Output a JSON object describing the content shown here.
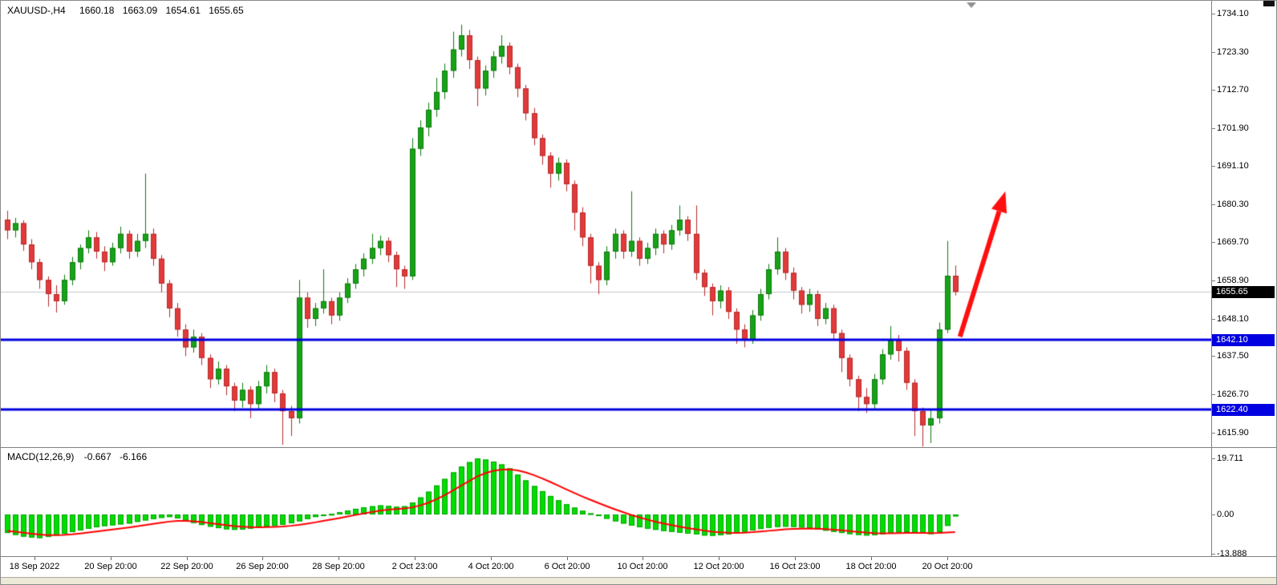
{
  "header": {
    "symbol_timeframe": "XAUUSD-,H4",
    "open": "1660.18",
    "high": "1663.09",
    "low": "1654.61",
    "close": "1655.65"
  },
  "price_axis": {
    "ticks": [
      "1734.10",
      "1723.30",
      "1712.70",
      "1701.90",
      "1691.10",
      "1680.30",
      "1669.70",
      "1658.90",
      "1648.10",
      "1637.50",
      "1626.70",
      "1615.90"
    ],
    "current_badge": {
      "label": "1655.65",
      "price": 1655.65
    },
    "line_badges": [
      {
        "label": "1642.10",
        "price": 1642.1
      },
      {
        "label": "1622.40",
        "price": 1622.4
      }
    ]
  },
  "time_axis": {
    "labels": [
      "18 Sep 2022",
      "20 Sep 20:00",
      "22 Sep 20:00",
      "26 Sep 20:00",
      "28 Sep 20:00",
      "2 Oct 23:00",
      "4 Oct 20:00",
      "6 Oct 20:00",
      "10 Oct 20:00",
      "12 Oct 20:00",
      "16 Oct 23:00",
      "18 Oct 20:00",
      "20 Oct 20:00"
    ]
  },
  "macd_panel": {
    "name": "MACD(12,26,9)",
    "main_value": "-0.667",
    "signal_value": "-6.166",
    "scale_ticks": [
      "19.711",
      "0.00",
      "-13.888"
    ]
  },
  "colors": {
    "bull": "#17a317",
    "bull_border": "#0e7a0e",
    "bear": "#e23a3a",
    "bear_border": "#b52b2b",
    "histogram": "#00dd00",
    "histogram_border": "#00a300",
    "signal_line": "#ff0000",
    "level_line": "#0000e0",
    "current_price_line": "#c8c8c8",
    "current_badge_bg": "#000000",
    "level_badge_bg": "#0000e0",
    "arrow": "#ff0f0f"
  },
  "chart_data": {
    "type": "candlestick",
    "symbol": "XAUUSD",
    "timeframe": "H4",
    "y_range": [
      1615.9,
      1734.1
    ],
    "current_price": 1655.65,
    "levels": [
      1642.1,
      1622.4
    ],
    "ohlc": [
      [
        1676.0,
        1678.5,
        1670.5,
        1673.0
      ],
      [
        1673.0,
        1676.5,
        1671.0,
        1675.0
      ],
      [
        1675.0,
        1675.8,
        1667.2,
        1669.0
      ],
      [
        1669.0,
        1670.5,
        1662.0,
        1664.0
      ],
      [
        1664.0,
        1665.0,
        1656.5,
        1659.0
      ],
      [
        1659.0,
        1660.0,
        1651.5,
        1655.0
      ],
      [
        1655.0,
        1657.5,
        1649.8,
        1653.0
      ],
      [
        1653.0,
        1660.5,
        1652.0,
        1659.0
      ],
      [
        1659.0,
        1665.5,
        1657.5,
        1664.0
      ],
      [
        1664.0,
        1669.0,
        1662.0,
        1668.0
      ],
      [
        1668.0,
        1673.0,
        1666.5,
        1671.0
      ],
      [
        1671.0,
        1672.5,
        1665.0,
        1667.0
      ],
      [
        1667.0,
        1668.5,
        1661.5,
        1664.0
      ],
      [
        1664.0,
        1669.5,
        1663.0,
        1668.0
      ],
      [
        1668.0,
        1674.0,
        1666.5,
        1672.0
      ],
      [
        1672.0,
        1673.0,
        1665.0,
        1667.0
      ],
      [
        1667.0,
        1672.0,
        1665.5,
        1670.0
      ],
      [
        1670.0,
        1689.0,
        1668.0,
        1672.0
      ],
      [
        1672.0,
        1673.5,
        1663.0,
        1665.0
      ],
      [
        1665.0,
        1666.0,
        1655.5,
        1658.0
      ],
      [
        1658.0,
        1659.0,
        1648.5,
        1651.0
      ],
      [
        1651.0,
        1652.5,
        1643.0,
        1645.0
      ],
      [
        1645.0,
        1646.5,
        1637.5,
        1640.0
      ],
      [
        1640.0,
        1645.0,
        1638.5,
        1643.0
      ],
      [
        1643.0,
        1644.0,
        1635.0,
        1637.0
      ],
      [
        1637.0,
        1638.0,
        1628.5,
        1631.0
      ],
      [
        1631.0,
        1636.0,
        1629.5,
        1634.0
      ],
      [
        1634.0,
        1635.0,
        1626.5,
        1629.0
      ],
      [
        1629.0,
        1630.0,
        1622.0,
        1625.0
      ],
      [
        1625.0,
        1630.0,
        1623.0,
        1628.0
      ],
      [
        1628.0,
        1629.0,
        1620.0,
        1624.0
      ],
      [
        1624.0,
        1630.5,
        1622.5,
        1629.0
      ],
      [
        1629.0,
        1635.0,
        1627.0,
        1633.0
      ],
      [
        1633.0,
        1634.0,
        1624.5,
        1627.0
      ],
      [
        1627.0,
        1628.0,
        1612.5,
        1622.0
      ],
      [
        1622.0,
        1623.5,
        1615.0,
        1620.0
      ],
      [
        1620.0,
        1659.0,
        1618.5,
        1654.0
      ],
      [
        1654.0,
        1655.5,
        1645.5,
        1648.0
      ],
      [
        1648.0,
        1652.5,
        1646.0,
        1651.0
      ],
      [
        1651.0,
        1662.0,
        1649.5,
        1653.0
      ],
      [
        1653.0,
        1654.0,
        1646.5,
        1649.0
      ],
      [
        1649.0,
        1655.5,
        1647.5,
        1654.0
      ],
      [
        1654.0,
        1659.5,
        1652.5,
        1658.0
      ],
      [
        1658.0,
        1663.5,
        1656.5,
        1662.0
      ],
      [
        1662.0,
        1666.5,
        1660.0,
        1665.0
      ],
      [
        1665.0,
        1672.0,
        1663.5,
        1668.0
      ],
      [
        1668.0,
        1671.5,
        1666.0,
        1670.0
      ],
      [
        1670.0,
        1671.0,
        1664.0,
        1666.0
      ],
      [
        1666.0,
        1667.0,
        1657.0,
        1662.0
      ],
      [
        1662.0,
        1663.0,
        1656.5,
        1660.0
      ],
      [
        1660.0,
        1699.0,
        1659.0,
        1696.0
      ],
      [
        1696.0,
        1704.0,
        1694.0,
        1702.0
      ],
      [
        1702.0,
        1709.0,
        1699.5,
        1707.0
      ],
      [
        1707.0,
        1716.0,
        1705.0,
        1712.0
      ],
      [
        1712.0,
        1720.0,
        1710.0,
        1718.0
      ],
      [
        1718.0,
        1729.0,
        1716.0,
        1724.0
      ],
      [
        1724.0,
        1731.0,
        1722.0,
        1728.0
      ],
      [
        1728.0,
        1729.5,
        1718.5,
        1721.0
      ],
      [
        1721.0,
        1722.0,
        1708.0,
        1713.0
      ],
      [
        1713.0,
        1719.5,
        1711.0,
        1718.0
      ],
      [
        1718.0,
        1723.5,
        1716.0,
        1722.0
      ],
      [
        1722.0,
        1728.0,
        1720.0,
        1725.0
      ],
      [
        1725.0,
        1726.0,
        1717.0,
        1719.0
      ],
      [
        1719.0,
        1720.0,
        1710.5,
        1713.0
      ],
      [
        1713.0,
        1714.0,
        1704.0,
        1706.0
      ],
      [
        1706.0,
        1707.5,
        1697.0,
        1699.0
      ],
      [
        1699.0,
        1700.0,
        1691.5,
        1694.0
      ],
      [
        1694.0,
        1695.0,
        1685.0,
        1689.0
      ],
      [
        1689.0,
        1693.5,
        1687.0,
        1692.0
      ],
      [
        1692.0,
        1693.0,
        1684.0,
        1686.0
      ],
      [
        1686.0,
        1687.0,
        1673.0,
        1678.0
      ],
      [
        1678.0,
        1679.5,
        1668.5,
        1671.0
      ],
      [
        1671.0,
        1672.0,
        1658.0,
        1663.0
      ],
      [
        1663.0,
        1664.0,
        1655.0,
        1659.0
      ],
      [
        1659.0,
        1668.5,
        1657.5,
        1667.0
      ],
      [
        1667.0,
        1673.5,
        1665.0,
        1672.0
      ],
      [
        1672.0,
        1673.0,
        1665.0,
        1667.0
      ],
      [
        1667.0,
        1684.0,
        1665.5,
        1670.0
      ],
      [
        1670.0,
        1671.0,
        1663.0,
        1665.0
      ],
      [
        1665.0,
        1669.5,
        1663.5,
        1668.0
      ],
      [
        1668.0,
        1673.5,
        1666.0,
        1672.0
      ],
      [
        1672.0,
        1673.0,
        1666.5,
        1669.0
      ],
      [
        1669.0,
        1674.5,
        1667.5,
        1673.0
      ],
      [
        1673.0,
        1680.0,
        1671.5,
        1676.0
      ],
      [
        1676.0,
        1677.0,
        1670.0,
        1672.0
      ],
      [
        1672.0,
        1680.0,
        1659.0,
        1661.0
      ],
      [
        1661.0,
        1662.0,
        1654.5,
        1657.0
      ],
      [
        1657.0,
        1658.0,
        1649.0,
        1653.0
      ],
      [
        1653.0,
        1657.5,
        1651.0,
        1656.0
      ],
      [
        1656.0,
        1657.0,
        1648.0,
        1650.0
      ],
      [
        1650.0,
        1651.0,
        1641.0,
        1645.0
      ],
      [
        1645.0,
        1646.5,
        1640.0,
        1642.0
      ],
      [
        1642.0,
        1650.5,
        1641.0,
        1649.0
      ],
      [
        1649.0,
        1656.5,
        1647.5,
        1655.0
      ],
      [
        1655.0,
        1663.5,
        1653.5,
        1662.0
      ],
      [
        1662.0,
        1671.0,
        1660.5,
        1667.0
      ],
      [
        1667.0,
        1668.0,
        1659.0,
        1661.0
      ],
      [
        1661.0,
        1662.5,
        1653.5,
        1656.0
      ],
      [
        1656.0,
        1657.0,
        1649.5,
        1652.0
      ],
      [
        1652.0,
        1656.5,
        1650.0,
        1655.0
      ],
      [
        1655.0,
        1656.0,
        1646.0,
        1648.0
      ],
      [
        1648.0,
        1652.5,
        1646.5,
        1651.0
      ],
      [
        1651.0,
        1652.0,
        1642.0,
        1644.0
      ],
      [
        1644.0,
        1645.0,
        1633.0,
        1637.0
      ],
      [
        1637.0,
        1638.0,
        1629.0,
        1631.0
      ],
      [
        1631.0,
        1632.0,
        1622.0,
        1626.0
      ],
      [
        1626.0,
        1628.5,
        1621.5,
        1624.0
      ],
      [
        1624.0,
        1632.5,
        1622.5,
        1631.0
      ],
      [
        1631.0,
        1639.5,
        1629.5,
        1638.0
      ],
      [
        1638.0,
        1646.0,
        1636.5,
        1642.0
      ],
      [
        1642.0,
        1643.5,
        1636.0,
        1639.0
      ],
      [
        1639.0,
        1640.0,
        1628.0,
        1630.0
      ],
      [
        1630.0,
        1631.0,
        1615.0,
        1622.0
      ],
      [
        1622.0,
        1623.0,
        1612.0,
        1618.0
      ],
      [
        1618.0,
        1622.5,
        1613.0,
        1620.0
      ],
      [
        1620.0,
        1647.0,
        1618.5,
        1645.0
      ],
      [
        1645.0,
        1670.0,
        1644.0,
        1660.2
      ],
      [
        1660.18,
        1663.09,
        1654.61,
        1655.65
      ]
    ],
    "annotations": [
      {
        "type": "arrow",
        "from_bar": 117.6,
        "from_price": 1643.0,
        "to_bar": 123.2,
        "to_price": 1684.0,
        "color": "#ff0f0f"
      }
    ],
    "indicator": {
      "name": "MACD(12,26,9)",
      "type": "histogram_line",
      "scale": [
        -13.888,
        0,
        19.711
      ],
      "histogram": [
        -6.5,
        -7.2,
        -7.8,
        -8.1,
        -8.3,
        -7.9,
        -7.4,
        -6.8,
        -6.2,
        -5.6,
        -5.0,
        -4.5,
        -4.1,
        -3.8,
        -3.5,
        -3.2,
        -2.6,
        -2.1,
        -1.6,
        -1.2,
        -0.9,
        -1.4,
        -2.2,
        -3.0,
        -3.7,
        -4.3,
        -4.8,
        -5.2,
        -5.4,
        -5.3,
        -5.0,
        -4.6,
        -4.3,
        -4.0,
        -3.6,
        -3.1,
        -2.4,
        -1.6,
        -0.9,
        -0.3,
        0.2,
        0.8,
        1.4,
        2.0,
        2.5,
        2.9,
        3.2,
        3.0,
        2.7,
        2.9,
        4.2,
        6.0,
        8.0,
        10.2,
        12.5,
        14.8,
        16.8,
        18.4,
        19.711,
        19.3,
        18.6,
        17.6,
        16.2,
        14.0,
        12.0,
        10.0,
        8.2,
        6.5,
        5.0,
        3.6,
        2.4,
        1.3,
        0.4,
        -0.5,
        -1.5,
        -2.4,
        -3.2,
        -3.9,
        -4.5,
        -5.0,
        -5.4,
        -5.8,
        -6.1,
        -6.4,
        -6.7,
        -7.0,
        -7.4,
        -7.5,
        -7.3,
        -7.0,
        -6.6,
        -6.1,
        -5.6,
        -5.1,
        -4.7,
        -4.4,
        -4.3,
        -4.4,
        -4.6,
        -4.9,
        -5.3,
        -5.7,
        -6.1,
        -6.5,
        -6.9,
        -7.2,
        -7.4,
        -7.3,
        -7.0,
        -6.6,
        -6.3,
        -6.2,
        -6.4,
        -6.6,
        -6.9,
        -6.2,
        -4.0,
        -0.667
      ],
      "signal": [
        -5.8,
        -6.08,
        -6.42,
        -6.76,
        -7.07,
        -7.24,
        -7.27,
        -7.18,
        -6.98,
        -6.7,
        -6.36,
        -5.99,
        -5.61,
        -5.25,
        -4.9,
        -4.56,
        -4.17,
        -3.76,
        -3.33,
        -2.9,
        -2.5,
        -2.28,
        -2.26,
        -2.41,
        -2.67,
        -3.0,
        -3.36,
        -3.73,
        -4.06,
        -4.31,
        -4.45,
        -4.48,
        -4.44,
        -4.35,
        -4.2,
        -3.98,
        -3.66,
        -3.25,
        -2.78,
        -2.28,
        -1.78,
        -1.26,
        -0.73,
        -0.18,
        0.36,
        0.87,
        1.34,
        1.67,
        1.88,
        2.08,
        2.5,
        3.2,
        4.16,
        5.37,
        6.8,
        8.4,
        10.08,
        11.74,
        13.33,
        14.52,
        15.34,
        15.79,
        15.87,
        15.5,
        14.8,
        13.84,
        12.71,
        11.47,
        10.18,
        8.86,
        7.57,
        6.32,
        5.13,
        4.0,
        2.9,
        1.84,
        0.83,
        -0.12,
        -1.0,
        -1.8,
        -2.52,
        -3.18,
        -3.76,
        -4.29,
        -4.77,
        -5.22,
        -5.66,
        -6.03,
        -6.28,
        -6.42,
        -6.46,
        -6.39,
        -6.23,
        -6.0,
        -5.74,
        -5.47,
        -5.24,
        -5.07,
        -4.98,
        -4.96,
        -5.03,
        -5.16,
        -5.35,
        -5.58,
        -5.84,
        -6.11,
        -6.37,
        -6.56,
        -6.65,
        -6.64,
        -6.57,
        -6.5,
        -6.48,
        -6.5,
        -6.58,
        -6.5,
        -6.35,
        -6.166
      ]
    }
  }
}
